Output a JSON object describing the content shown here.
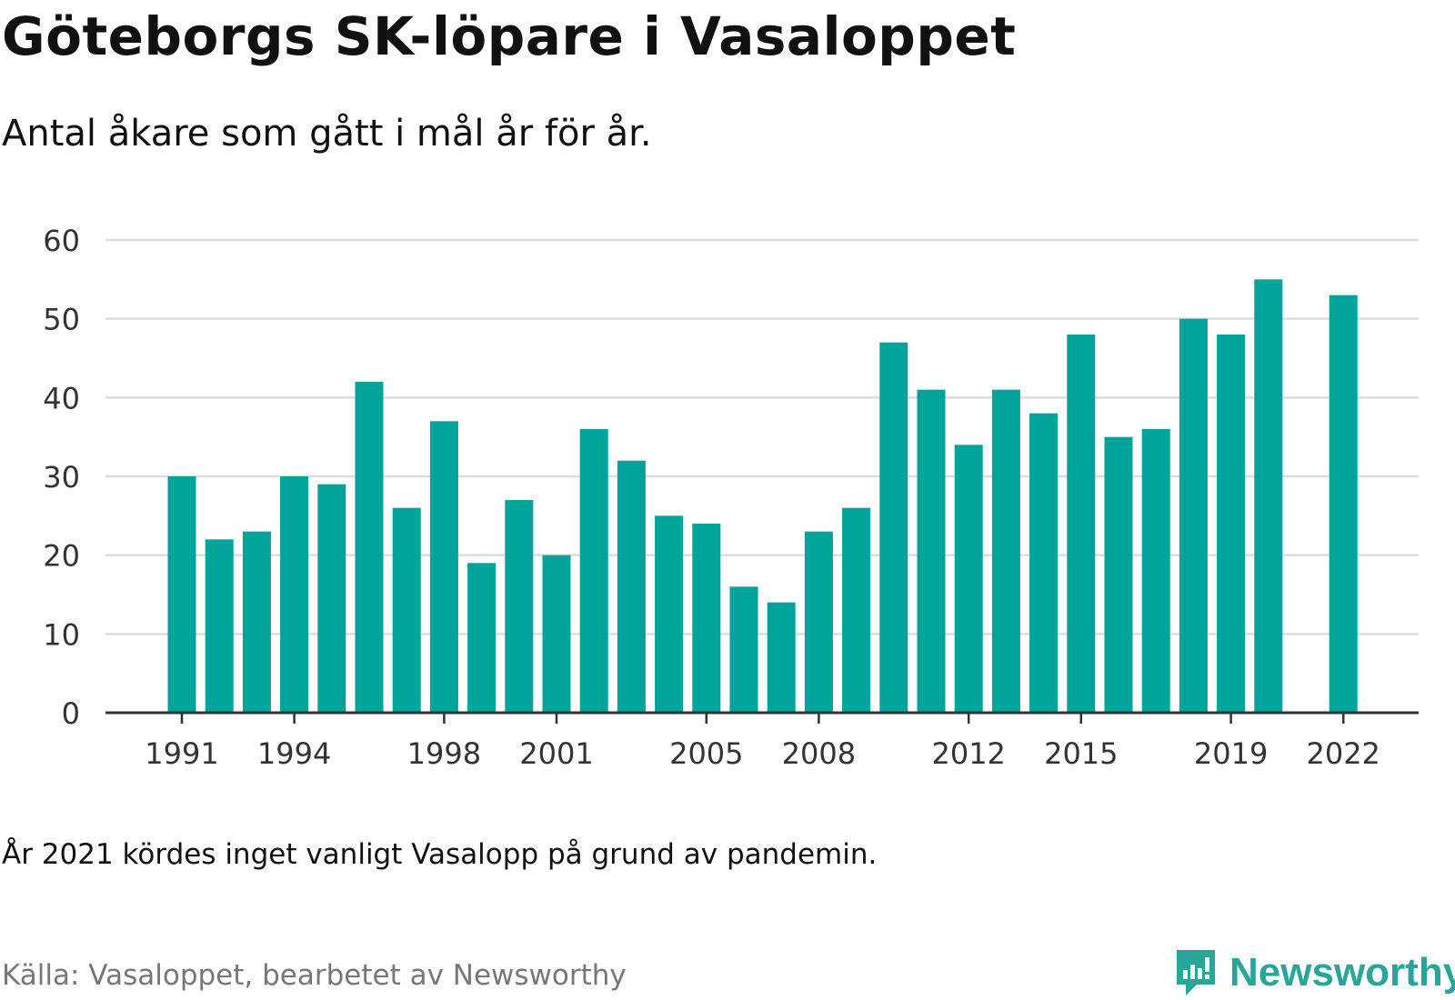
{
  "title": "Göteborgs SK-löpare i Vasaloppet",
  "subtitle": "Antal åkare som gått i mål år för år.",
  "note": "År 2021 kördes inget vanligt Vasalopp på grund av pandemin.",
  "source": "Källa: Vasaloppet, bearbetet av Newsworthy",
  "logo_text": "Newsworthy",
  "colors": {
    "bar": "#00a49a",
    "grid": "#dddddd",
    "axis": "#333333",
    "logo": "#2aa59a"
  },
  "chart_data": {
    "type": "bar",
    "categories": [
      1991,
      1992,
      1993,
      1994,
      1995,
      1996,
      1997,
      1998,
      1999,
      2000,
      2001,
      2002,
      2003,
      2004,
      2005,
      2006,
      2007,
      2008,
      2009,
      2010,
      2011,
      2012,
      2013,
      2014,
      2015,
      2016,
      2017,
      2018,
      2019,
      2020,
      2021,
      2022
    ],
    "values": [
      30,
      22,
      23,
      30,
      29,
      42,
      26,
      37,
      19,
      27,
      20,
      36,
      32,
      25,
      24,
      16,
      14,
      23,
      26,
      47,
      41,
      34,
      41,
      38,
      48,
      35,
      36,
      50,
      48,
      55,
      null,
      53
    ],
    "x_tick_labels": [
      "1991",
      "1994",
      "1998",
      "2001",
      "2005",
      "2008",
      "2012",
      "2015",
      "2019",
      "2022"
    ],
    "y_ticks": [
      0,
      10,
      20,
      30,
      40,
      50,
      60
    ],
    "ylim": [
      0,
      60
    ],
    "xlabel": "",
    "ylabel": "",
    "grid": true
  }
}
